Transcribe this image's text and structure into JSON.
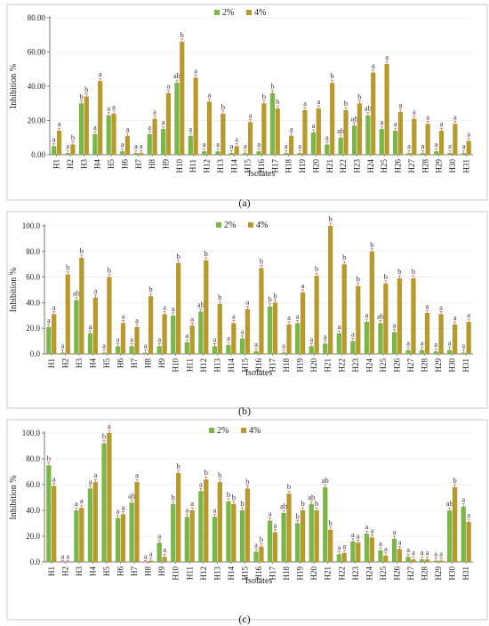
{
  "colors": {
    "s1": "#7ab648",
    "s2": "#b89a2c",
    "err": "#d25a5a",
    "axis": "#555555",
    "grid": "#e6e6e6"
  },
  "chart_data": [
    {
      "type": "bar",
      "panel_label": "(a)",
      "xlabel": "Isolates",
      "ylabel": "Inhibition %",
      "ylim": [
        0,
        80
      ],
      "yticks": [
        "0.00",
        "20.00",
        "40.00",
        "60.00",
        "80.00"
      ],
      "legend": "top-right",
      "categories": [
        "H1",
        "H2",
        "H3",
        "H4",
        "H5",
        "H6",
        "H7",
        "H8",
        "H9",
        "H10",
        "H11",
        "H12",
        "H13",
        "H14",
        "H15",
        "H16",
        "H17",
        "H18",
        "H19",
        "H20",
        "H21",
        "H22",
        "H23",
        "H24",
        "H25",
        "H26",
        "H27",
        "H28",
        "H29",
        "H30",
        "H31"
      ],
      "series": [
        {
          "name": "2%",
          "values": [
            5,
            1,
            30,
            12,
            23,
            2,
            1,
            12,
            15,
            42,
            11,
            2,
            2,
            1,
            1,
            2,
            36,
            1,
            1,
            13,
            6,
            10,
            17,
            23,
            15,
            14,
            1,
            1,
            2,
            1,
            1
          ]
        },
        {
          "name": "4%",
          "values": [
            14,
            6,
            34,
            43,
            24,
            11,
            1,
            21,
            36,
            66,
            45,
            31,
            24,
            5,
            19,
            30,
            27,
            11,
            26,
            27,
            42,
            26,
            30,
            48,
            53,
            25,
            21,
            18,
            14,
            18,
            8
          ]
        }
      ],
      "labels": [
        [
          "a",
          "a",
          "b",
          "a",
          "a",
          "a",
          "a",
          "a",
          "a",
          "ab",
          "a",
          "a",
          "a",
          "a",
          "a",
          "a",
          "b",
          "a",
          "a",
          "a",
          "a",
          "ab",
          "ab",
          "ab",
          "a",
          "a",
          "a",
          "a",
          "a",
          "a",
          "a"
        ],
        [
          "a",
          "b",
          "b",
          "a",
          "a",
          "a",
          "a",
          "a",
          "a",
          "b",
          "a",
          "a",
          "b",
          "a",
          "a",
          "b",
          "b",
          "a",
          "a",
          "a",
          "b",
          "b",
          "b",
          "a",
          "a",
          "a",
          "a",
          "a",
          "a",
          "a",
          "a"
        ]
      ]
    },
    {
      "type": "bar",
      "panel_label": "(b)",
      "xlabel": "Isolates",
      "ylabel": "Inhibition %",
      "ylim": [
        0,
        100
      ],
      "yticks": [
        "0.0",
        "20.0",
        "40.0",
        "60.0",
        "80.0",
        "100.0"
      ],
      "legend": "top-right",
      "categories": [
        "H1",
        "H2",
        "H3",
        "H4",
        "H5",
        "H6",
        "H7",
        "H8",
        "H9",
        "H10",
        "H11",
        "H12",
        "H13",
        "H14",
        "H15",
        "H16",
        "H17",
        "H18",
        "H19",
        "H20",
        "H21",
        "H22",
        "H23",
        "H24",
        "H25",
        "H26",
        "H27",
        "H28",
        "H29",
        "H30",
        "H31"
      ],
      "series": [
        {
          "name": "2%",
          "values": [
            21,
            1,
            42,
            16,
            1,
            6,
            6,
            1,
            6,
            30,
            9,
            33,
            6,
            7,
            12,
            2,
            37,
            1,
            24,
            6,
            8,
            16,
            10,
            25,
            24,
            17,
            3,
            3,
            2,
            3,
            1
          ]
        },
        {
          "name": "4%",
          "values": [
            31,
            62,
            75,
            44,
            60,
            24,
            21,
            45,
            31,
            71,
            22,
            73,
            39,
            24,
            35,
            67,
            40,
            23,
            48,
            61,
            100,
            70,
            53,
            80,
            55,
            59,
            59,
            32,
            31,
            23,
            25
          ]
        }
      ],
      "labels": [
        [
          "a",
          "a",
          "ab",
          "a",
          "a",
          "a",
          "a",
          "a",
          "a",
          "a",
          "a",
          "ab",
          "a",
          "a",
          "a",
          "a",
          "b",
          "a",
          "a",
          "a",
          "a",
          "a",
          "a",
          "a",
          "ab",
          "a",
          "a",
          "a",
          "a",
          "a",
          "a"
        ],
        [
          "a",
          "b",
          "b",
          "a",
          "b",
          "a",
          "a",
          "b",
          "a",
          "b",
          "a",
          "b",
          "b",
          "a",
          "a",
          "b",
          "b",
          "a",
          "a",
          "b",
          "b",
          "b",
          "b",
          "b",
          "b",
          "b",
          "b",
          "a",
          "a",
          "a",
          "a"
        ]
      ]
    },
    {
      "type": "bar",
      "panel_label": "(c)",
      "xlabel": "Isolates",
      "ylabel": "Inhibition %",
      "ylim": [
        0,
        100
      ],
      "yticks": [
        "0.0",
        "20.0",
        "40.0",
        "60.0",
        "80.0",
        "100.0"
      ],
      "legend": "top-right",
      "categories": [
        "H1",
        "H2",
        "H3",
        "H4",
        "H5",
        "H6",
        "H7",
        "H8",
        "H9",
        "H10",
        "H11",
        "H12",
        "H13",
        "H14",
        "H15",
        "H16",
        "H17",
        "H18",
        "H19",
        "H20",
        "H21",
        "H22",
        "H23",
        "H24",
        "H25",
        "H26",
        "H27",
        "H28",
        "H29",
        "H30",
        "H31"
      ],
      "series": [
        {
          "name": "2%",
          "values": [
            75,
            0,
            40,
            57,
            92,
            34,
            46,
            0,
            15,
            45,
            35,
            55,
            35,
            47,
            40,
            8,
            32,
            38,
            30,
            45,
            58,
            6,
            16,
            22,
            9,
            18,
            4,
            2,
            1,
            40,
            43
          ]
        },
        {
          "name": "4%",
          "values": [
            59,
            0,
            42,
            62,
            100,
            37,
            62,
            1,
            4,
            69,
            40,
            64,
            62,
            45,
            57,
            12,
            23,
            53,
            40,
            40,
            25,
            7,
            15,
            19,
            5,
            10,
            2,
            2,
            1,
            58,
            31
          ]
        }
      ],
      "labels": [
        [
          "b",
          "a",
          "a",
          "a",
          "b",
          "a",
          "ab",
          "a",
          "a",
          "b",
          "a",
          "a",
          "a",
          "b",
          "b",
          "a",
          "a",
          "ab",
          "b",
          "ab",
          "ab",
          "a",
          "a",
          "a",
          "a",
          "a",
          "a",
          "a",
          "a",
          "ab",
          "a"
        ],
        [
          "a",
          "a",
          "a",
          "a",
          "a",
          "a",
          "a",
          "a",
          "a",
          "b",
          "a",
          "b",
          "b",
          "b",
          "b",
          "b",
          "a",
          "b",
          "b",
          "b",
          "b",
          "a",
          "a",
          "a",
          "a",
          "a",
          "a",
          "a",
          "a",
          "b",
          "a"
        ]
      ]
    }
  ]
}
